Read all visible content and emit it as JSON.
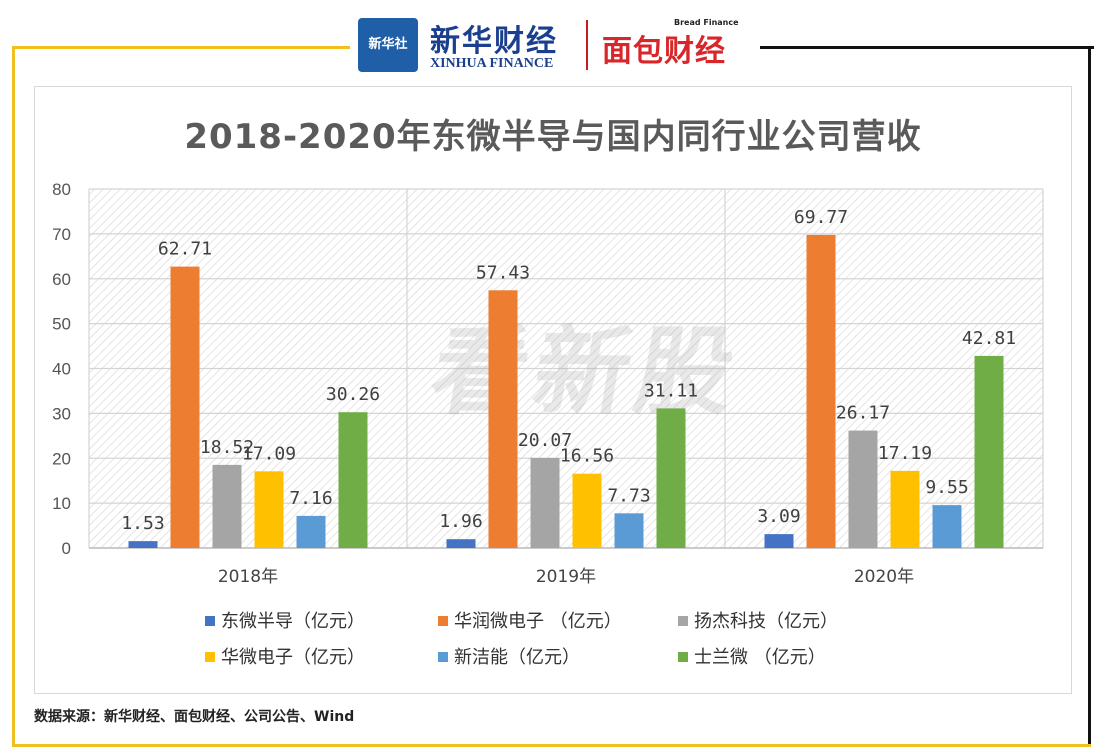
{
  "header": {
    "logo_text": "新华社",
    "brand_cn": "新华财经",
    "brand_en": "XINHUA FINANCE",
    "partner_cn": "面包财经",
    "partner_en": "Bread Finance"
  },
  "watermark": "看新股",
  "source": "数据来源：新华财经、面包财经、公司公告、Wind",
  "colors": {
    "s1": "#4472C4",
    "s2": "#ED7D31",
    "s3": "#A5A5A5",
    "s4": "#FFC000",
    "s5": "#5B9BD5",
    "s6": "#70AD47"
  },
  "chart_data": {
    "type": "bar",
    "title": "2018-2020年东微半导与国内同行业公司营收",
    "categories": [
      "2018年",
      "2019年",
      "2020年"
    ],
    "ylim": [
      0,
      80
    ],
    "yticks": [
      0,
      10,
      20,
      30,
      40,
      50,
      60,
      70,
      80
    ],
    "grid": true,
    "legend_position": "bottom",
    "series": [
      {
        "name": "东微半导（亿元）",
        "values": [
          1.53,
          1.96,
          3.09
        ],
        "labels": [
          "1.53",
          "1.96",
          "3.09"
        ]
      },
      {
        "name": "华润微电子 （亿元）",
        "values": [
          62.71,
          57.43,
          69.77
        ],
        "labels": [
          "62.71",
          "57.43",
          "69.77"
        ]
      },
      {
        "name": "扬杰科技（亿元）",
        "values": [
          18.52,
          20.07,
          26.17
        ],
        "labels": [
          "18.52",
          "20.07",
          "26.17"
        ]
      },
      {
        "name": "华微电子（亿元）",
        "values": [
          17.09,
          16.56,
          17.19
        ],
        "labels": [
          "17.09",
          "16.56",
          "17.19"
        ]
      },
      {
        "name": "新洁能（亿元）",
        "values": [
          7.16,
          7.73,
          9.55
        ],
        "labels": [
          "7.16",
          "7.73",
          "9.55"
        ]
      },
      {
        "name": "士兰微 （亿元）",
        "values": [
          30.26,
          31.11,
          42.81
        ],
        "labels": [
          "30.26",
          "31.11",
          "42.81"
        ]
      }
    ]
  }
}
